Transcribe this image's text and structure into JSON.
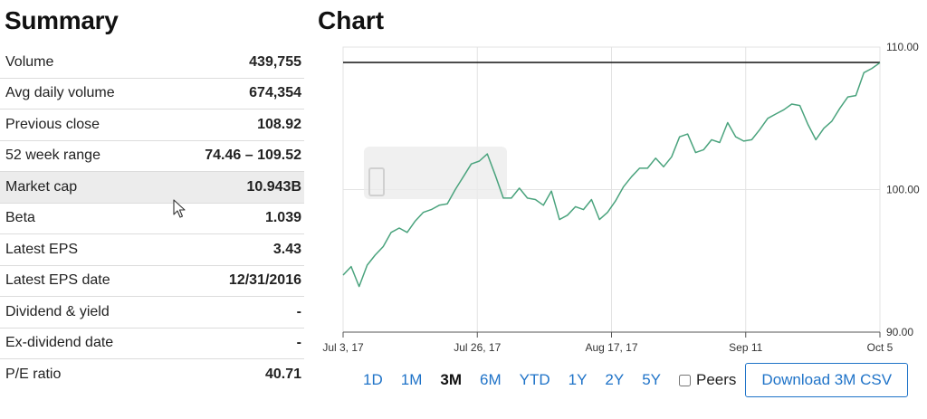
{
  "summary": {
    "title": "Summary",
    "rows": [
      {
        "label": "Volume",
        "value": "439,755"
      },
      {
        "label": "Avg daily volume",
        "value": "674,354"
      },
      {
        "label": "Previous close",
        "value": "108.92"
      },
      {
        "label": "52 week range",
        "value": "74.46 – 109.52"
      },
      {
        "label": "Market cap",
        "value": "10.943B"
      },
      {
        "label": "Beta",
        "value": "1.039"
      },
      {
        "label": "Latest EPS",
        "value": "3.43"
      },
      {
        "label": "Latest EPS date",
        "value": "12/31/2016"
      },
      {
        "label": "Dividend & yield",
        "value": "-"
      },
      {
        "label": "Ex-dividend date",
        "value": "-"
      },
      {
        "label": "P/E ratio",
        "value": "40.71"
      }
    ]
  },
  "chart": {
    "title": "Chart",
    "ranges": [
      "1D",
      "1M",
      "3M",
      "6M",
      "YTD",
      "1Y",
      "2Y",
      "5Y"
    ],
    "active_range": "3M",
    "peers_label": "Peers",
    "download_label": "Download  3M  CSV",
    "colors": {
      "line": "#4aa37d",
      "reference": "#111111",
      "grid": "#e3e3e3"
    }
  },
  "chart_data": {
    "type": "line",
    "x_ticks": [
      "Jul 3, 17",
      "Jul 26, 17",
      "Aug 17, 17",
      "Sep 11",
      "Oct 5"
    ],
    "y_ticks": [
      "90.00",
      "100.00",
      "110.00"
    ],
    "ylim": [
      90,
      110
    ],
    "reference_line": 108.92,
    "series": [
      {
        "values": [
          94.0,
          94.6,
          93.2,
          94.7,
          95.4,
          96.0,
          97.0,
          97.3,
          97.0,
          97.8,
          98.4,
          98.6,
          98.9,
          99.0,
          100.0,
          100.9,
          101.8,
          102.0,
          102.5,
          101.0,
          99.4,
          99.4,
          100.1,
          99.4,
          99.3,
          98.9,
          99.9,
          97.9,
          98.2,
          98.8,
          98.6,
          99.3,
          97.9,
          98.4,
          99.2,
          100.2,
          100.9,
          101.5,
          101.5,
          102.2,
          101.6,
          102.3,
          103.7,
          103.9,
          102.6,
          102.8,
          103.5,
          103.3,
          104.7,
          103.7,
          103.4,
          103.5,
          104.2,
          105.0,
          105.3,
          105.6,
          106.0,
          105.9,
          104.6,
          103.5,
          104.3,
          104.8,
          105.7,
          106.5,
          106.6,
          108.2,
          108.5,
          108.9
        ]
      }
    ]
  }
}
